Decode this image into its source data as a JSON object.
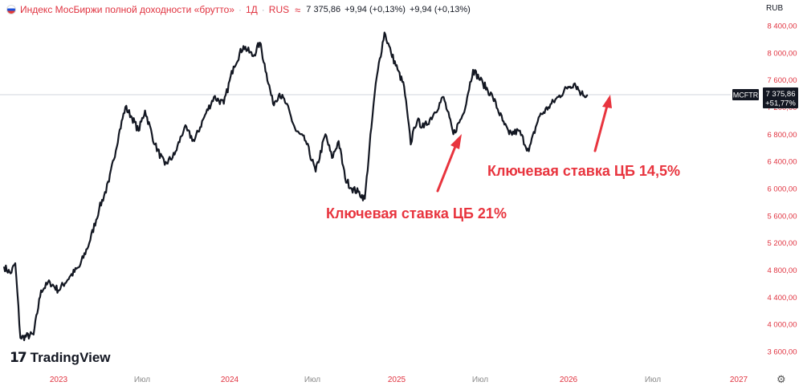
{
  "header": {
    "title": "Индекс МосБиржи полной доходности «брутто»",
    "interval": "1Д",
    "exchange": "RUS",
    "comparison_icon": "approx-equal-icon",
    "flag_icon": "russia-flag-icon",
    "last": "7 375,86",
    "change1": "+9,94 (+0,13%)",
    "change2": "+9,94 (+0,13%)"
  },
  "currency": "RUB",
  "logo": {
    "icon": "tradingview-logo-icon",
    "text": "TradingView"
  },
  "settings_icon": "gear-icon",
  "colors": {
    "line": "#131722",
    "annotation": "#e8343e",
    "axis_text_red": "#e0323f",
    "hline": "#d1d4dc",
    "label_bg": "#131722"
  },
  "chart_data": {
    "type": "line",
    "title": "Индекс МосБиржи полной доходности «брутто»",
    "series": [
      {
        "x": [
          "2022-11-14",
          "2022-11-28",
          "2022-12-08",
          "2022-12-19",
          "2023-01-16",
          "2023-02-01",
          "2023-02-20",
          "2023-03-10",
          "2023-04-03",
          "2023-04-24",
          "2023-05-15",
          "2023-06-05",
          "2023-06-26",
          "2023-07-17",
          "2023-07-31",
          "2023-08-14",
          "2023-08-28",
          "2023-09-11",
          "2023-10-02",
          "2023-10-23",
          "2023-11-13",
          "2023-12-04",
          "2023-12-25",
          "2024-01-15",
          "2024-02-05",
          "2024-02-26",
          "2024-03-18",
          "2024-04-08",
          "2024-04-29",
          "2024-05-13",
          "2024-05-27",
          "2024-06-10",
          "2024-06-24",
          "2024-07-08",
          "2024-07-29",
          "2024-08-19",
          "2024-09-09",
          "2024-09-30",
          "2024-10-14",
          "2024-10-28",
          "2024-11-11",
          "2024-11-25",
          "2024-12-09",
          "2024-12-23",
          "2025-01-06",
          "2025-01-13",
          "2025-01-20",
          "2025-02-03",
          "2025-02-17",
          "2025-03-03",
          "2025-03-17",
          "2025-03-31",
          "2025-04-07",
          "2025-04-14",
          "2025-04-28",
          "2025-05-19",
          "2025-06-09",
          "2025-06-30",
          "2025-07-21",
          "2025-08-11",
          "2025-09-01",
          "2025-09-22",
          "2025-10-13",
          "2025-10-27",
          "2025-11-17",
          "2025-12-08",
          "2025-12-29",
          "2026-01-19",
          "2026-02-09",
          "2026-03-02",
          "2026-03-16",
          "2026-03-30",
          "2026-04-13"
        ],
        "y": [
          4850,
          4750,
          4900,
          3800,
          3850,
          4500,
          4620,
          4500,
          4700,
          4850,
          5200,
          5700,
          6100,
          6800,
          7200,
          7050,
          6850,
          7150,
          6650,
          6350,
          6500,
          6900,
          6700,
          7050,
          7350,
          7250,
          7800,
          8100,
          7950,
          8150,
          7700,
          7250,
          7400,
          7250,
          6850,
          6700,
          6250,
          6800,
          6450,
          6700,
          6150,
          6000,
          5950,
          5850,
          6900,
          7400,
          7750,
          8300,
          8000,
          7750,
          7500,
          6650,
          6900,
          7000,
          6900,
          7100,
          7350,
          6800,
          7100,
          7750,
          7550,
          7350,
          7000,
          6800,
          6850,
          6550,
          7050,
          7200,
          7350,
          7500,
          7550,
          7400,
          7375.86
        ]
      }
    ],
    "y_ticks": [
      "3 600,00",
      "4 000,00",
      "4 400,00",
      "4 800,00",
      "5 200,00",
      "5 600,00",
      "6 000,00",
      "6 400,00",
      "6 800,00",
      "7 200,00",
      "7 600,00",
      "8 000,00",
      "8 400,00"
    ],
    "x_ticks": [
      "2023",
      "Июл",
      "2024",
      "Июл",
      "2025",
      "Июл",
      "2026",
      "Июл",
      "2027"
    ],
    "ylim": [
      3500,
      8500
    ],
    "xlim": [
      "2022-11-14",
      "2027-03-01"
    ],
    "grid": false,
    "last_price_label": {
      "symbol": "MCFTR",
      "value": "7 375,86",
      "pct": "+51,77%"
    },
    "annotations": [
      {
        "text": "Ключевая ставка ЦБ 21%",
        "arrow_points_to": {
          "x": "2025-04-07",
          "y": 6750
        }
      },
      {
        "text": "Ключевая ставка ЦБ 14,5%",
        "arrow_points_to": {
          "x": "2026-03-30",
          "y": 7350
        }
      }
    ]
  }
}
